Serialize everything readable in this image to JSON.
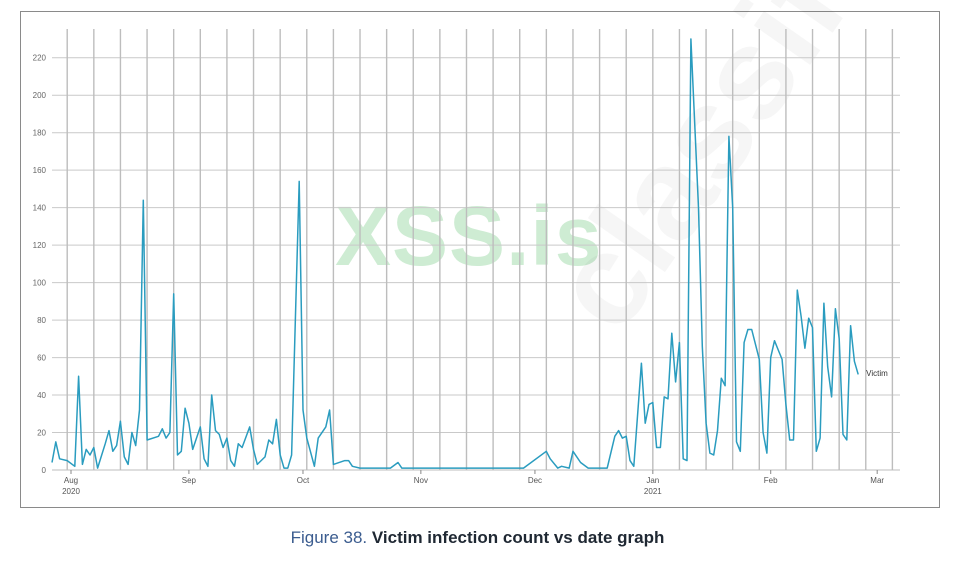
{
  "caption": {
    "figure_label": "Figure 38.",
    "title": "Victim infection count vs date graph"
  },
  "watermark_text": "XSS.is",
  "watermark_text2": "classified",
  "colors": {
    "line": "#2a9cbf",
    "grid": "#c9c9c9",
    "month_grid": "#b0b0b0",
    "watermark": "#8fd19e",
    "caption_label": "#3b5c8f"
  },
  "chart_data": {
    "type": "line",
    "title": "",
    "xlabel": "",
    "ylabel": "",
    "ylim": [
      0,
      230
    ],
    "yticks": [
      0,
      20,
      40,
      60,
      80,
      100,
      120,
      140,
      160,
      180,
      200,
      220
    ],
    "xlim": [
      "2020-07-27",
      "2021-03-07"
    ],
    "x_ticks": [
      {
        "date": "2020-08-01",
        "label": "Aug",
        "sublabel": "2020"
      },
      {
        "date": "2020-09-01",
        "label": "Sep",
        "sublabel": ""
      },
      {
        "date": "2020-10-01",
        "label": "Oct",
        "sublabel": ""
      },
      {
        "date": "2020-11-01",
        "label": "Nov",
        "sublabel": ""
      },
      {
        "date": "2020-12-01",
        "label": "Dec",
        "sublabel": ""
      },
      {
        "date": "2021-01-01",
        "label": "Jan",
        "sublabel": "2021"
      },
      {
        "date": "2021-02-01",
        "label": "Feb",
        "sublabel": ""
      },
      {
        "date": "2021-03-01",
        "label": "Mar",
        "sublabel": ""
      }
    ],
    "grid": true,
    "legend": "right",
    "series": [
      {
        "name": "Victim",
        "points": [
          [
            "2020-07-27",
            4
          ],
          [
            "2020-07-28",
            15
          ],
          [
            "2020-07-29",
            6
          ],
          [
            "2020-07-31",
            5
          ],
          [
            "2020-08-02",
            2
          ],
          [
            "2020-08-03",
            50
          ],
          [
            "2020-08-04",
            3
          ],
          [
            "2020-08-05",
            11
          ],
          [
            "2020-08-06",
            8
          ],
          [
            "2020-08-07",
            12
          ],
          [
            "2020-08-08",
            1
          ],
          [
            "2020-08-10",
            14
          ],
          [
            "2020-08-11",
            21
          ],
          [
            "2020-08-12",
            10
          ],
          [
            "2020-08-13",
            13
          ],
          [
            "2020-08-14",
            26
          ],
          [
            "2020-08-15",
            7
          ],
          [
            "2020-08-16",
            3
          ],
          [
            "2020-08-17",
            20
          ],
          [
            "2020-08-18",
            13
          ],
          [
            "2020-08-19",
            32
          ],
          [
            "2020-08-20",
            144
          ],
          [
            "2020-08-21",
            16
          ],
          [
            "2020-08-24",
            18
          ],
          [
            "2020-08-25",
            22
          ],
          [
            "2020-08-26",
            17
          ],
          [
            "2020-08-27",
            20
          ],
          [
            "2020-08-28",
            94
          ],
          [
            "2020-08-29",
            8
          ],
          [
            "2020-08-30",
            10
          ],
          [
            "2020-08-31",
            33
          ],
          [
            "2020-09-01",
            25
          ],
          [
            "2020-09-02",
            11
          ],
          [
            "2020-09-04",
            23
          ],
          [
            "2020-09-05",
            6
          ],
          [
            "2020-09-06",
            2
          ],
          [
            "2020-09-07",
            40
          ],
          [
            "2020-09-08",
            21
          ],
          [
            "2020-09-09",
            19
          ],
          [
            "2020-09-10",
            12
          ],
          [
            "2020-09-11",
            17
          ],
          [
            "2020-09-12",
            5
          ],
          [
            "2020-09-13",
            2
          ],
          [
            "2020-09-14",
            14
          ],
          [
            "2020-09-15",
            12
          ],
          [
            "2020-09-17",
            23
          ],
          [
            "2020-09-18",
            11
          ],
          [
            "2020-09-19",
            3
          ],
          [
            "2020-09-21",
            7
          ],
          [
            "2020-09-22",
            16
          ],
          [
            "2020-09-23",
            14
          ],
          [
            "2020-09-24",
            27
          ],
          [
            "2020-09-25",
            8
          ],
          [
            "2020-09-26",
            1
          ],
          [
            "2020-09-27",
            1
          ],
          [
            "2020-09-28",
            8
          ],
          [
            "2020-09-30",
            154
          ],
          [
            "2020-10-01",
            32
          ],
          [
            "2020-10-02",
            17
          ],
          [
            "2020-10-04",
            2
          ],
          [
            "2020-10-05",
            17
          ],
          [
            "2020-10-07",
            23
          ],
          [
            "2020-10-08",
            32
          ],
          [
            "2020-10-09",
            3
          ],
          [
            "2020-10-12",
            5
          ],
          [
            "2020-10-13",
            5
          ],
          [
            "2020-10-14",
            2
          ],
          [
            "2020-10-16",
            1
          ],
          [
            "2020-10-24",
            1
          ],
          [
            "2020-10-26",
            4
          ],
          [
            "2020-10-27",
            1
          ],
          [
            "2020-11-28",
            1
          ],
          [
            "2020-12-04",
            10
          ],
          [
            "2020-12-05",
            6
          ],
          [
            "2020-12-07",
            1
          ],
          [
            "2020-12-08",
            2
          ],
          [
            "2020-12-10",
            1
          ],
          [
            "2020-12-11",
            10
          ],
          [
            "2020-12-13",
            4
          ],
          [
            "2020-12-15",
            1
          ],
          [
            "2020-12-20",
            1
          ],
          [
            "2020-12-22",
            18
          ],
          [
            "2020-12-23",
            21
          ],
          [
            "2020-12-24",
            17
          ],
          [
            "2020-12-25",
            18
          ],
          [
            "2020-12-26",
            5
          ],
          [
            "2020-12-27",
            2
          ],
          [
            "2020-12-29",
            57
          ],
          [
            "2020-12-30",
            25
          ],
          [
            "2020-12-31",
            35
          ],
          [
            "2021-01-01",
            36
          ],
          [
            "2021-01-02",
            12
          ],
          [
            "2021-01-03",
            12
          ],
          [
            "2021-01-04",
            39
          ],
          [
            "2021-01-05",
            38
          ],
          [
            "2021-01-06",
            73
          ],
          [
            "2021-01-07",
            47
          ],
          [
            "2021-01-08",
            68
          ],
          [
            "2021-01-09",
            6
          ],
          [
            "2021-01-10",
            5
          ],
          [
            "2021-01-11",
            230
          ],
          [
            "2021-01-13",
            140
          ],
          [
            "2021-01-14",
            66
          ],
          [
            "2021-01-15",
            25
          ],
          [
            "2021-01-16",
            9
          ],
          [
            "2021-01-17",
            8
          ],
          [
            "2021-01-18",
            21
          ],
          [
            "2021-01-19",
            49
          ],
          [
            "2021-01-20",
            45
          ],
          [
            "2021-01-21",
            178
          ],
          [
            "2021-01-22",
            140
          ],
          [
            "2021-01-23",
            15
          ],
          [
            "2021-01-24",
            10
          ],
          [
            "2021-01-25",
            68
          ],
          [
            "2021-01-26",
            75
          ],
          [
            "2021-01-27",
            75
          ],
          [
            "2021-01-28",
            67
          ],
          [
            "2021-01-29",
            59
          ],
          [
            "2021-01-30",
            20
          ],
          [
            "2021-01-31",
            9
          ],
          [
            "2021-02-01",
            60
          ],
          [
            "2021-02-02",
            69
          ],
          [
            "2021-02-03",
            64
          ],
          [
            "2021-02-04",
            59
          ],
          [
            "2021-02-05",
            35
          ],
          [
            "2021-02-06",
            16
          ],
          [
            "2021-02-07",
            16
          ],
          [
            "2021-02-08",
            96
          ],
          [
            "2021-02-09",
            82
          ],
          [
            "2021-02-10",
            65
          ],
          [
            "2021-02-11",
            81
          ],
          [
            "2021-02-12",
            76
          ],
          [
            "2021-02-13",
            10
          ],
          [
            "2021-02-14",
            17
          ],
          [
            "2021-02-15",
            89
          ],
          [
            "2021-02-16",
            55
          ],
          [
            "2021-02-17",
            39
          ],
          [
            "2021-02-18",
            86
          ],
          [
            "2021-02-19",
            70
          ],
          [
            "2021-02-20",
            19
          ],
          [
            "2021-02-21",
            16
          ],
          [
            "2021-02-22",
            77
          ],
          [
            "2021-02-23",
            58
          ],
          [
            "2021-02-24",
            51
          ]
        ]
      }
    ]
  }
}
